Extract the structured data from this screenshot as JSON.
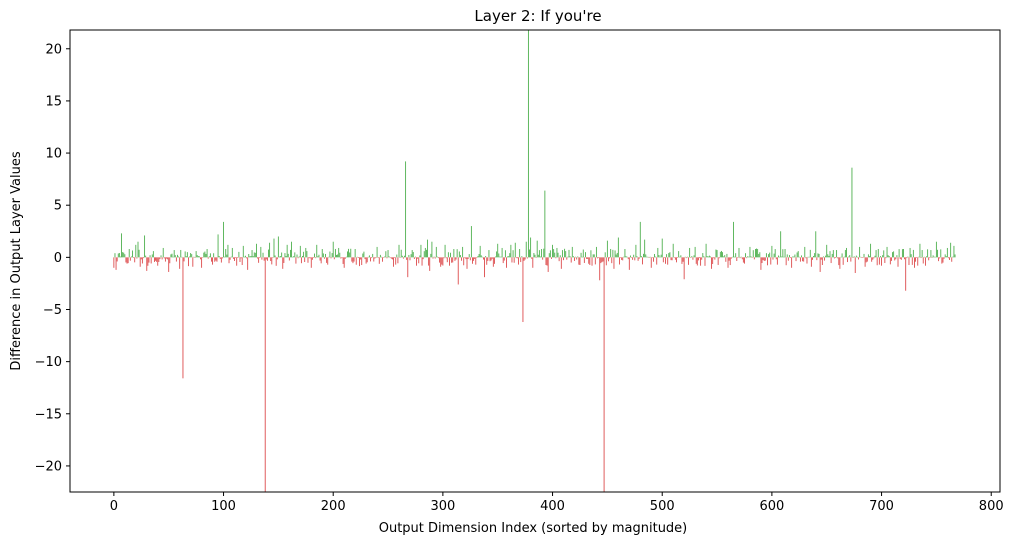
{
  "chart_data": {
    "type": "bar",
    "title": "Layer 2: If you're",
    "xlabel": "Output Dimension Index (sorted by magnitude)",
    "ylabel": "Difference in Output Layer Values",
    "xlim": [
      -40,
      808
    ],
    "ylim": [
      -22.5,
      21.8
    ],
    "xticks": [
      0,
      100,
      200,
      300,
      400,
      500,
      600,
      700,
      800
    ],
    "yticks": [
      -20,
      -15,
      -10,
      -5,
      0,
      5,
      10,
      15,
      20
    ],
    "grid": false,
    "positive_color": "#2ca02c",
    "negative_color": "#d62728",
    "n_bars": 768,
    "x": [
      0,
      1,
      2,
      7,
      8,
      10,
      12,
      14,
      20,
      22,
      24,
      28,
      30,
      36,
      40,
      45,
      50,
      55,
      60,
      63,
      67,
      72,
      75,
      80,
      85,
      90,
      95,
      98,
      100,
      104,
      108,
      112,
      118,
      122,
      126,
      130,
      134,
      138,
      142,
      146,
      150,
      154,
      158,
      162,
      166,
      170,
      175,
      180,
      185,
      190,
      195,
      200,
      205,
      210,
      220,
      230,
      240,
      250,
      255,
      260,
      266,
      268,
      272,
      276,
      280,
      284,
      286,
      288,
      290,
      294,
      298,
      302,
      306,
      310,
      314,
      318,
      322,
      326,
      330,
      334,
      338,
      342,
      346,
      350,
      354,
      358,
      362,
      366,
      370,
      373,
      376,
      378,
      380,
      382,
      386,
      390,
      393,
      396,
      400,
      404,
      408,
      412,
      418,
      424,
      430,
      436,
      440,
      443,
      447,
      450,
      456,
      460,
      466,
      470,
      476,
      480,
      484,
      490,
      496,
      500,
      505,
      510,
      515,
      520,
      525,
      530,
      535,
      540,
      545,
      550,
      555,
      560,
      565,
      570,
      575,
      580,
      585,
      590,
      595,
      600,
      605,
      608,
      612,
      618,
      624,
      630,
      636,
      640,
      644,
      650,
      656,
      662,
      668,
      673,
      676,
      680,
      685,
      690,
      695,
      700,
      705,
      710,
      715,
      720,
      722,
      726,
      730,
      735,
      740,
      745,
      750,
      755,
      760,
      763,
      766
    ],
    "values": [
      -1.0,
      0.4,
      -1.2,
      2.3,
      0.5,
      0.3,
      -0.6,
      0.8,
      1.2,
      1.5,
      -0.9,
      2.1,
      -1.3,
      0.6,
      -0.8,
      0.9,
      -1.4,
      0.7,
      -1.1,
      -11.6,
      0.5,
      -0.9,
      0.6,
      -1.0,
      0.8,
      -0.7,
      2.2,
      -0.5,
      3.4,
      1.2,
      0.9,
      -0.8,
      1.1,
      -1.2,
      0.7,
      1.3,
      1.0,
      -22.5,
      1.4,
      1.8,
      2.0,
      -1.1,
      1.2,
      1.5,
      -0.6,
      1.1,
      0.9,
      -1.0,
      1.2,
      0.8,
      -0.7,
      1.5,
      0.9,
      -1.0,
      0.8,
      -0.6,
      1.0,
      0.7,
      -0.9,
      1.2,
      9.2,
      -1.9,
      0.7,
      -0.8,
      1.2,
      0.9,
      1.7,
      -1.3,
      1.5,
      1.0,
      -0.9,
      1.2,
      -0.8,
      0.8,
      -2.6,
      1.0,
      -1.1,
      3.0,
      -0.7,
      1.1,
      -1.9,
      0.7,
      -0.9,
      1.3,
      0.9,
      -1.0,
      1.2,
      1.4,
      0.8,
      -6.2,
      1.5,
      21.8,
      1.9,
      -1.0,
      1.6,
      0.8,
      6.4,
      -1.4,
      1.2,
      0.9,
      -1.1,
      0.6,
      1.0,
      -0.7,
      0.5,
      -0.8,
      1.0,
      -2.2,
      -22.5,
      1.6,
      -1.1,
      1.9,
      0.8,
      -1.2,
      1.2,
      3.4,
      1.7,
      -1.0,
      0.9,
      1.8,
      -0.7,
      1.3,
      0.6,
      -2.1,
      0.9,
      1.0,
      -0.8,
      1.3,
      -1.1,
      0.7,
      0.5,
      -1.0,
      3.4,
      0.9,
      -0.6,
      1.0,
      0.8,
      -1.2,
      0.4,
      1.1,
      -0.7,
      2.5,
      0.8,
      -1.0,
      0.6,
      1.0,
      -0.9,
      2.5,
      -1.4,
      1.2,
      0.7,
      -1.1,
      0.9,
      8.6,
      -1.5,
      1.0,
      -0.9,
      1.3,
      0.7,
      -0.8,
      1.0,
      0.5,
      -0.9,
      0.8,
      -3.2,
      0.9,
      -1.0,
      1.3,
      -0.8,
      0.7,
      1.5,
      -0.6,
      0.9,
      1.4,
      1.1
    ]
  }
}
